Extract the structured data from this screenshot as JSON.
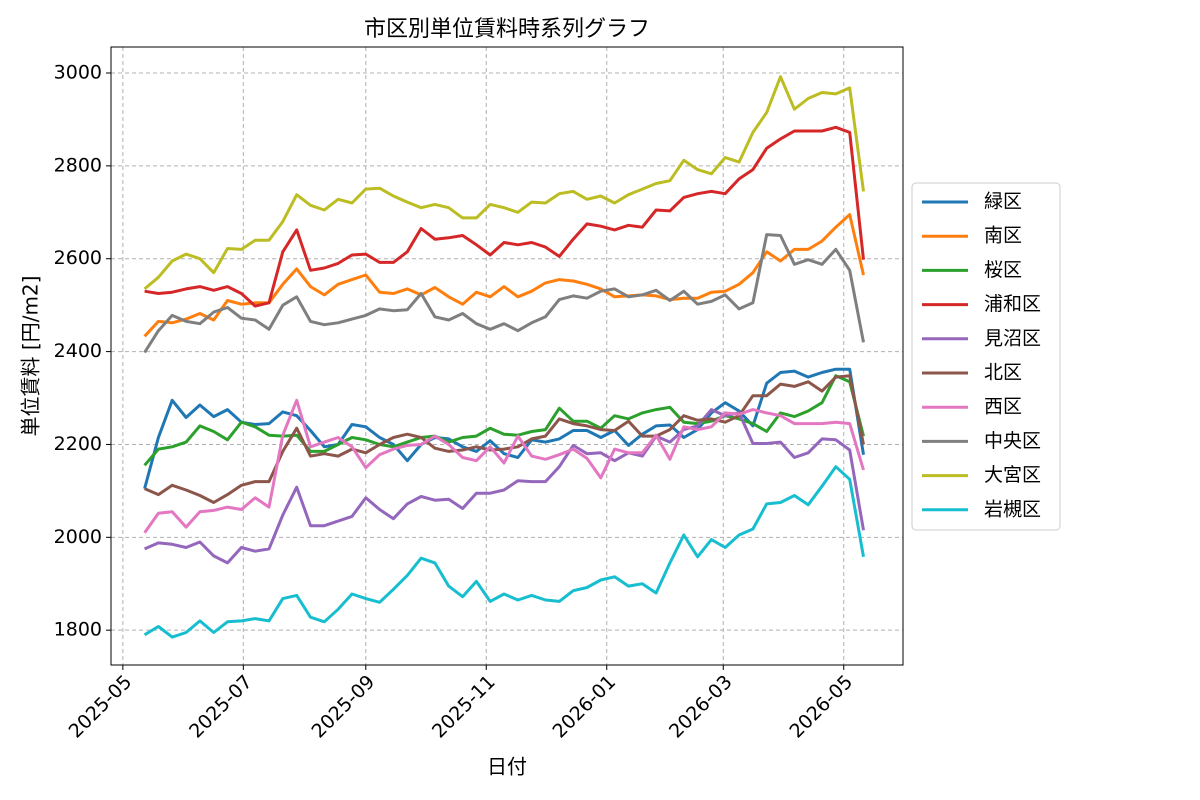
{
  "chart_data": {
    "type": "line",
    "title": "市区別単位賃料時系列グラフ",
    "x_label": "日付",
    "y_label": "単位賃料 [円/m2]",
    "x": [
      "2025-05-12",
      "2025-05-19",
      "2025-05-26",
      "2025-06-02",
      "2025-06-09",
      "2025-06-16",
      "2025-06-23",
      "2025-06-30",
      "2025-07-07",
      "2025-07-14",
      "2025-07-21",
      "2025-07-28",
      "2025-08-04",
      "2025-08-11",
      "2025-08-18",
      "2025-08-25",
      "2025-09-01",
      "2025-09-08",
      "2025-09-15",
      "2025-09-22",
      "2025-09-29",
      "2025-10-06",
      "2025-10-13",
      "2025-10-20",
      "2025-10-27",
      "2025-11-03",
      "2025-11-10",
      "2025-11-17",
      "2025-11-24",
      "2025-12-01",
      "2025-12-08",
      "2025-12-15",
      "2025-12-22",
      "2025-12-29",
      "2026-01-05",
      "2026-01-12",
      "2026-01-19",
      "2026-01-26",
      "2026-02-02",
      "2026-02-09",
      "2026-02-16",
      "2026-02-23",
      "2026-03-02",
      "2026-03-09",
      "2026-03-16",
      "2026-03-23",
      "2026-03-30",
      "2026-04-06",
      "2026-04-13",
      "2026-04-20",
      "2026-04-27",
      "2026-05-04",
      "2026-05-11"
    ],
    "series": [
      {
        "name": "緑区",
        "color": "#1f77b4",
        "values": [
          2105,
          2215,
          2295,
          2258,
          2285,
          2260,
          2275,
          2248,
          2243,
          2245,
          2270,
          2262,
          2230,
          2195,
          2200,
          2243,
          2238,
          2215,
          2200,
          2165,
          2200,
          2215,
          2212,
          2195,
          2185,
          2208,
          2180,
          2172,
          2210,
          2205,
          2212,
          2230,
          2230,
          2215,
          2230,
          2198,
          2222,
          2240,
          2242,
          2215,
          2232,
          2268,
          2290,
          2272,
          2240,
          2332,
          2355,
          2358,
          2345,
          2355,
          2362,
          2362,
          2178
        ]
      },
      {
        "name": "南区",
        "color": "#ff7f0e",
        "values": [
          2433,
          2465,
          2462,
          2470,
          2482,
          2468,
          2510,
          2502,
          2505,
          2505,
          2545,
          2578,
          2540,
          2522,
          2545,
          2555,
          2565,
          2528,
          2525,
          2535,
          2522,
          2538,
          2518,
          2502,
          2528,
          2518,
          2540,
          2518,
          2530,
          2548,
          2555,
          2552,
          2545,
          2535,
          2518,
          2520,
          2522,
          2520,
          2512,
          2515,
          2515,
          2528,
          2530,
          2545,
          2570,
          2615,
          2595,
          2620,
          2620,
          2638,
          2668,
          2695,
          2565
        ]
      },
      {
        "name": "桜区",
        "color": "#2ca02c",
        "values": [
          2155,
          2190,
          2195,
          2205,
          2240,
          2228,
          2210,
          2248,
          2238,
          2220,
          2218,
          2220,
          2185,
          2185,
          2200,
          2215,
          2210,
          2200,
          2195,
          2205,
          2215,
          2218,
          2205,
          2215,
          2218,
          2235,
          2222,
          2220,
          2228,
          2232,
          2278,
          2250,
          2250,
          2235,
          2262,
          2255,
          2268,
          2275,
          2280,
          2248,
          2245,
          2250,
          2262,
          2255,
          2245,
          2228,
          2268,
          2260,
          2272,
          2290,
          2348,
          2335,
          2218
        ]
      },
      {
        "name": "浦和区",
        "color": "#d62728",
        "values": [
          2530,
          2525,
          2528,
          2535,
          2540,
          2532,
          2540,
          2525,
          2498,
          2505,
          2615,
          2662,
          2575,
          2580,
          2590,
          2608,
          2610,
          2592,
          2592,
          2615,
          2665,
          2642,
          2645,
          2650,
          2630,
          2608,
          2635,
          2630,
          2635,
          2625,
          2605,
          2642,
          2675,
          2670,
          2662,
          2672,
          2668,
          2705,
          2703,
          2732,
          2740,
          2745,
          2740,
          2772,
          2792,
          2838,
          2858,
          2875,
          2875,
          2875,
          2883,
          2872,
          2598
        ]
      },
      {
        "name": "見沼区",
        "color": "#9467bd",
        "values": [
          1975,
          1988,
          1985,
          1978,
          1990,
          1960,
          1945,
          1978,
          1970,
          1975,
          2048,
          2108,
          2025,
          2025,
          2035,
          2045,
          2085,
          2060,
          2040,
          2072,
          2088,
          2080,
          2082,
          2062,
          2095,
          2095,
          2102,
          2122,
          2120,
          2120,
          2152,
          2198,
          2180,
          2182,
          2165,
          2182,
          2175,
          2218,
          2205,
          2232,
          2240,
          2275,
          2262,
          2268,
          2202,
          2202,
          2205,
          2172,
          2182,
          2212,
          2210,
          2188,
          2015
        ]
      },
      {
        "name": "北区",
        "color": "#8c564b",
        "values": [
          2105,
          2092,
          2112,
          2102,
          2090,
          2075,
          2092,
          2112,
          2120,
          2120,
          2185,
          2235,
          2175,
          2180,
          2175,
          2190,
          2182,
          2200,
          2215,
          2222,
          2215,
          2192,
          2185,
          2188,
          2195,
          2188,
          2190,
          2195,
          2212,
          2218,
          2255,
          2245,
          2240,
          2232,
          2230,
          2250,
          2218,
          2218,
          2232,
          2262,
          2252,
          2255,
          2248,
          2262,
          2305,
          2305,
          2330,
          2325,
          2335,
          2315,
          2345,
          2348,
          2200
        ]
      },
      {
        "name": "西区",
        "color": "#e377c2",
        "values": [
          2010,
          2052,
          2055,
          2022,
          2055,
          2058,
          2065,
          2060,
          2085,
          2065,
          2220,
          2295,
          2195,
          2205,
          2215,
          2195,
          2150,
          2178,
          2190,
          2198,
          2200,
          2218,
          2200,
          2172,
          2165,
          2195,
          2160,
          2218,
          2175,
          2168,
          2178,
          2190,
          2170,
          2128,
          2190,
          2182,
          2182,
          2220,
          2168,
          2238,
          2232,
          2238,
          2268,
          2265,
          2275,
          2268,
          2262,
          2245,
          2245,
          2245,
          2248,
          2245,
          2145
        ]
      },
      {
        "name": "中央区",
        "color": "#7f7f7f",
        "values": [
          2398,
          2445,
          2478,
          2465,
          2460,
          2485,
          2495,
          2472,
          2468,
          2448,
          2500,
          2518,
          2465,
          2458,
          2462,
          2470,
          2478,
          2492,
          2488,
          2490,
          2525,
          2475,
          2468,
          2482,
          2460,
          2448,
          2460,
          2445,
          2462,
          2475,
          2512,
          2520,
          2515,
          2530,
          2535,
          2518,
          2522,
          2532,
          2510,
          2530,
          2502,
          2508,
          2522,
          2492,
          2505,
          2652,
          2650,
          2588,
          2598,
          2588,
          2620,
          2575,
          2420
        ]
      },
      {
        "name": "大宮区",
        "color": "#bcbd22",
        "values": [
          2535,
          2560,
          2595,
          2610,
          2600,
          2570,
          2622,
          2620,
          2640,
          2640,
          2680,
          2738,
          2715,
          2705,
          2728,
          2720,
          2750,
          2752,
          2735,
          2722,
          2710,
          2717,
          2710,
          2688,
          2688,
          2717,
          2710,
          2700,
          2722,
          2720,
          2740,
          2745,
          2728,
          2735,
          2720,
          2738,
          2750,
          2762,
          2768,
          2812,
          2792,
          2783,
          2818,
          2808,
          2872,
          2915,
          2992,
          2922,
          2945,
          2958,
          2955,
          2968,
          2745
        ]
      },
      {
        "name": "岩槻区",
        "color": "#17becf",
        "values": [
          1790,
          1808,
          1785,
          1795,
          1820,
          1795,
          1818,
          1820,
          1825,
          1820,
          1868,
          1875,
          1828,
          1818,
          1845,
          1878,
          1868,
          1860,
          1888,
          1918,
          1955,
          1945,
          1895,
          1872,
          1905,
          1862,
          1878,
          1865,
          1875,
          1865,
          1862,
          1885,
          1892,
          1908,
          1915,
          1895,
          1900,
          1880,
          1945,
          2005,
          1958,
          1995,
          1978,
          2005,
          2018,
          2072,
          2075,
          2090,
          2070,
          2110,
          2152,
          2125,
          1958
        ]
      }
    ],
    "xlim": [
      "2025-04-25",
      "2026-05-31"
    ],
    "xticks": [
      {
        "value": "2025-05-01",
        "label": "2025-05"
      },
      {
        "value": "2025-07-01",
        "label": "2025-07"
      },
      {
        "value": "2025-09-01",
        "label": "2025-09"
      },
      {
        "value": "2025-11-01",
        "label": "2025-11"
      },
      {
        "value": "2026-01-01",
        "label": "2026-01"
      },
      {
        "value": "2026-03-01",
        "label": "2026-03"
      },
      {
        "value": "2026-05-01",
        "label": "2026-05"
      }
    ],
    "ylim": [
      1725,
      3056
    ],
    "yticks": [
      1800,
      2000,
      2200,
      2400,
      2600,
      2800,
      3000
    ],
    "grid": true,
    "legend": "outside right"
  }
}
